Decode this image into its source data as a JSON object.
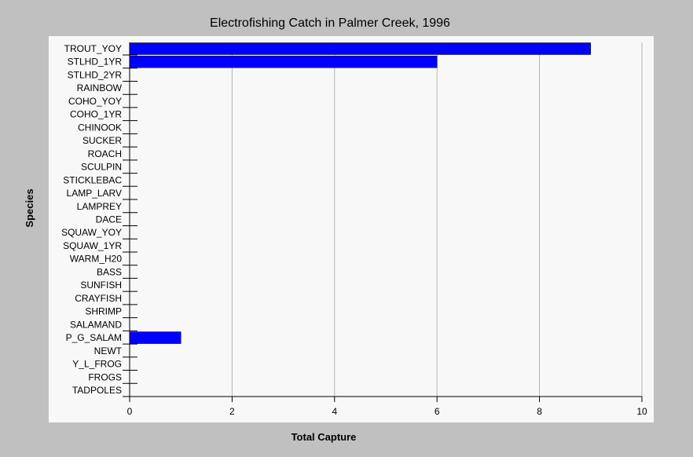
{
  "chart_data": {
    "type": "bar",
    "orientation": "horizontal",
    "title": "Electrofishing Catch in Palmer Creek, 1996",
    "xlabel": "Total Capture",
    "ylabel": "Species",
    "xlim": [
      0,
      10
    ],
    "xticks": [
      "0",
      "2",
      "4",
      "6",
      "8",
      "10"
    ],
    "grid": "vertical",
    "legend": "none",
    "categories": [
      "TROUT_YOY",
      "STLHD_1YR",
      "STLHD_2YR",
      "RAINBOW",
      "COHO_YOY",
      "COHO_1YR",
      "CHINOOK",
      "SUCKER",
      "ROACH",
      "SCULPIN",
      "STICKLEBAC",
      "LAMP_LARV",
      "LAMPREY",
      "DACE",
      "SQUAW_YOY",
      "SQUAW_1YR",
      "WARM_H20",
      "BASS",
      "SUNFISH",
      "CRAYFISH",
      "SHRIMP",
      "SALAMAND",
      "P_G_SALAM",
      "NEWT",
      "Y_L_FROG",
      "FROGS",
      "TADPOLES"
    ],
    "values": [
      9,
      6,
      0,
      0,
      0,
      0,
      0,
      0,
      0,
      0,
      0,
      0,
      0,
      0,
      0,
      0,
      0,
      0,
      0,
      0,
      0,
      0,
      1,
      0,
      0,
      0,
      0
    ],
    "colors": {
      "bar": "#0000ff",
      "plot_background": "#f8f8f8",
      "page_background": "#c0c0c0",
      "grid": "#b4b4b4"
    }
  }
}
